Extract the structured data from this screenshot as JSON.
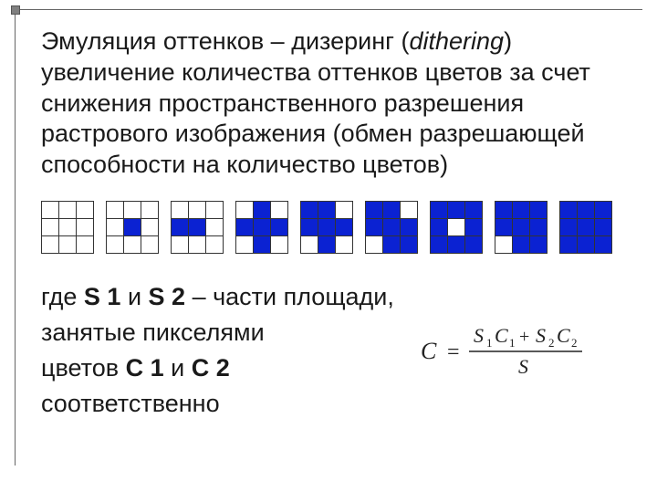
{
  "heading": {
    "line1": "Эмуляция оттенков – дизеринг (",
    "line1_italic": "dithering",
    "line1_after": ")",
    "rest": "увеличение количества оттенков цветов за счет снижения пространственного разрешения растрового изображения (обмен разрешающей способности на количество цветов)"
  },
  "colors": {
    "fill": "#0b22d2",
    "empty": "#ffffff",
    "grid_border": "#333333",
    "frame_border": "#666666"
  },
  "grids": [
    [
      "w",
      "w",
      "w",
      "w",
      "w",
      "w",
      "w",
      "w",
      "w"
    ],
    [
      "w",
      "w",
      "w",
      "w",
      "b",
      "w",
      "w",
      "w",
      "w"
    ],
    [
      "w",
      "w",
      "w",
      "b",
      "b",
      "w",
      "w",
      "w",
      "w"
    ],
    [
      "w",
      "b",
      "w",
      "b",
      "b",
      "b",
      "w",
      "b",
      "w"
    ],
    [
      "b",
      "b",
      "w",
      "b",
      "b",
      "b",
      "w",
      "b",
      "w"
    ],
    [
      "b",
      "b",
      "w",
      "b",
      "b",
      "b",
      "w",
      "b",
      "b"
    ],
    [
      "b",
      "b",
      "b",
      "b",
      "w",
      "b",
      "b",
      "b",
      "b"
    ],
    [
      "b",
      "b",
      "b",
      "b",
      "b",
      "b",
      "w",
      "b",
      "b"
    ],
    [
      "b",
      "b",
      "b",
      "b",
      "b",
      "b",
      "b",
      "b",
      "b"
    ]
  ],
  "description": {
    "prefix": "где ",
    "s1": "S 1",
    "mid1": " и ",
    "s2": "S 2",
    "text1": " – части площади, занятые пикселями",
    "line3_prefix": "цветов ",
    "c1": "C 1",
    "mid2": " и ",
    "c2": "C 2",
    "suffix": " соответственно"
  },
  "formula": {
    "lhs": "C",
    "eq": "=",
    "numerator": "S₁C₁ + S₂C₂",
    "denominator": "S",
    "text_color": "#222222",
    "font_size": 22
  }
}
